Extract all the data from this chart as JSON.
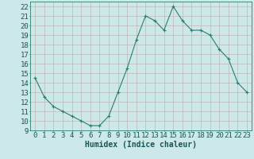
{
  "x": [
    0,
    1,
    2,
    3,
    4,
    5,
    6,
    7,
    8,
    9,
    10,
    11,
    12,
    13,
    14,
    15,
    16,
    17,
    18,
    19,
    20,
    21,
    22,
    23
  ],
  "y": [
    14.5,
    12.5,
    11.5,
    11.0,
    10.5,
    10.0,
    9.5,
    9.5,
    10.5,
    13.0,
    15.5,
    18.5,
    21.0,
    20.5,
    19.5,
    22.0,
    20.5,
    19.5,
    19.5,
    19.0,
    17.5,
    16.5,
    14.0,
    13.0
  ],
  "line_color": "#2e7d6e",
  "marker": "+",
  "bg_color": "#cce8e8",
  "grid_major_color": "#c0b8b8",
  "grid_minor_color": "#d8cccc",
  "xlabel": "Humidex (Indice chaleur)",
  "ylabel_ticks": [
    9,
    10,
    11,
    12,
    13,
    14,
    15,
    16,
    17,
    18,
    19,
    20,
    21,
    22
  ],
  "xlim": [
    -0.5,
    23.5
  ],
  "ylim": [
    9,
    22.5
  ],
  "xlabel_fontsize": 7,
  "tick_fontsize": 6.5
}
